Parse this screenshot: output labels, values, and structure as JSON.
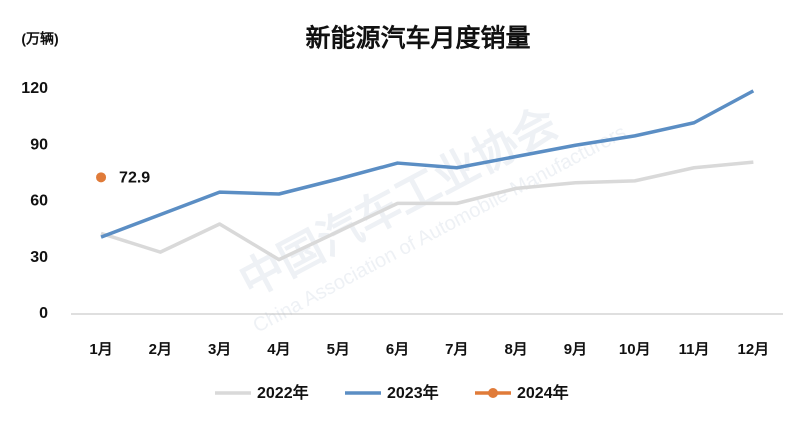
{
  "chart_data": {
    "type": "line",
    "title": "新能源汽车月度销量",
    "y_label": "(万辆)",
    "watermark": [
      "中国汽车工业协会",
      "China Association of Automobile Manufacturers"
    ],
    "categories": [
      "1月",
      "2月",
      "3月",
      "4月",
      "5月",
      "6月",
      "7月",
      "8月",
      "9月",
      "10月",
      "11月",
      "12月"
    ],
    "series": [
      {
        "name": "2022年",
        "color": "#d9d9d9",
        "values": [
          43,
          33,
          48,
          29,
          44,
          59,
          59,
          67,
          70,
          71,
          78,
          81
        ]
      },
      {
        "name": "2023年",
        "color": "#5b8ec4",
        "values": [
          41,
          53,
          65,
          64,
          72,
          80.5,
          78,
          84,
          90,
          95,
          102,
          119
        ]
      },
      {
        "name": "2024年",
        "color": "#e07b39",
        "values": [
          72.9,
          null,
          null,
          null,
          null,
          null,
          null,
          null,
          null,
          null,
          null,
          null
        ]
      }
    ],
    "ylim": [
      0,
      120
    ],
    "yticks": [
      0,
      30,
      60,
      90,
      120
    ],
    "grid": false,
    "legend": "bottom"
  }
}
